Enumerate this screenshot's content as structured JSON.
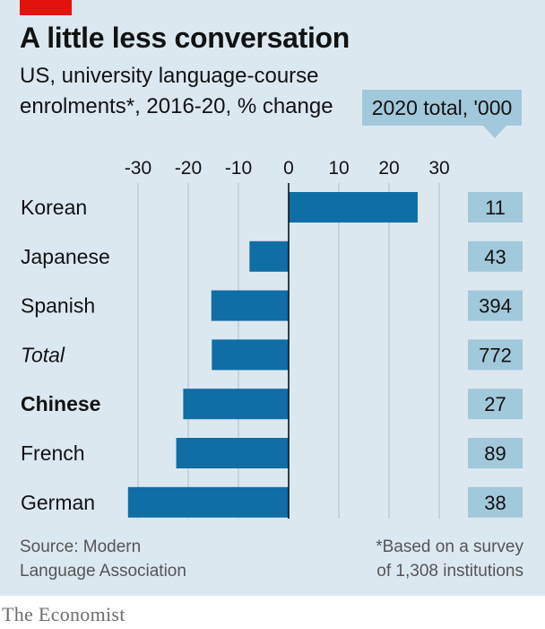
{
  "header": {
    "title": "A little less conversation",
    "subtitle_line1": "US, university language-course",
    "subtitle_line2": "enrolments*, 2016-20, % change",
    "totals_header": "2020 total, '000"
  },
  "chart_data": {
    "type": "bar",
    "orientation": "horizontal",
    "title": "A little less conversation",
    "subtitle": "US, university language-course enrolments*, 2016-20, % change",
    "categories": [
      "Korean",
      "Japanese",
      "Spanish",
      "Total",
      "Chinese",
      "French",
      "German"
    ],
    "category_styles": [
      "normal",
      "normal",
      "normal",
      "italic",
      "bold",
      "normal",
      "normal"
    ],
    "values": [
      25.7,
      -7.8,
      -15.4,
      -15.3,
      -21.0,
      -22.4,
      -32.0
    ],
    "totals_2020_thousands": [
      11,
      43,
      394,
      772,
      27,
      89,
      38
    ],
    "xlim": [
      -30,
      30
    ],
    "xticks": [
      -30,
      -20,
      -10,
      0,
      10,
      20,
      30
    ],
    "xtick_labels": [
      "-30",
      "-20",
      "-10",
      "0",
      "10",
      "20",
      "30"
    ],
    "grid": "vertical",
    "colors": {
      "bar": "#0f6ea5",
      "totals_box": "#a2c8dc",
      "background": "#dce8f0",
      "gridline": "#b8c8d2",
      "accent": "#e3120b"
    }
  },
  "footer": {
    "source_line1": "Source: Modern",
    "source_line2": "Language Association",
    "note_line1": "*Based on a survey",
    "note_line2": "of 1,308 institutions",
    "brand": "The Economist"
  }
}
